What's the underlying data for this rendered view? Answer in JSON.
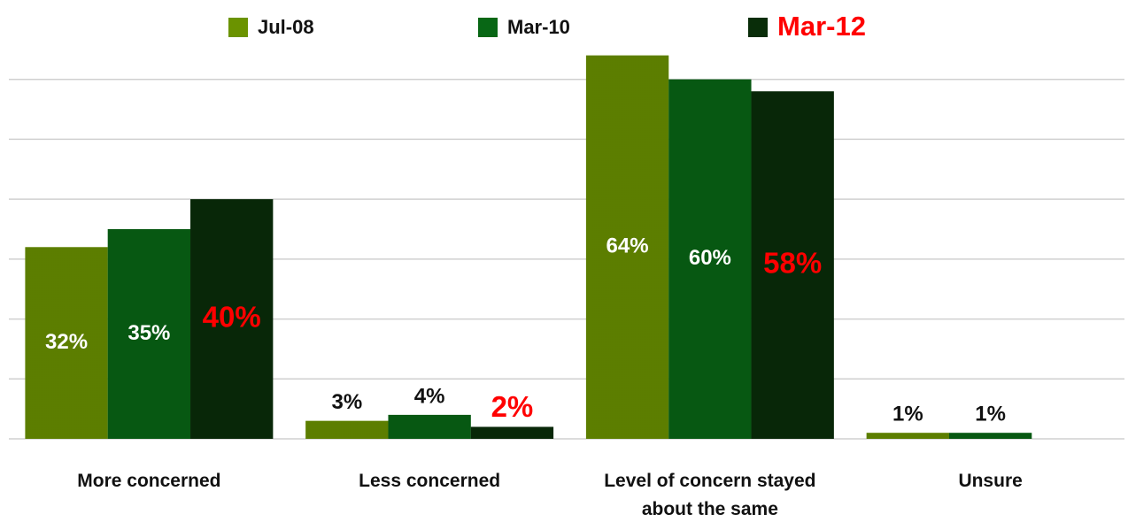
{
  "chart_data": {
    "type": "bar",
    "categories": [
      "More concerned",
      "Less concerned",
      "Level of concern stayed about the same",
      "Unsure"
    ],
    "series": [
      {
        "name": "Jul-08",
        "color": "#8fc400",
        "values": [
          32,
          3,
          64,
          1
        ],
        "value_labels": [
          "32%",
          "3%",
          "64%",
          "1%"
        ]
      },
      {
        "name": "Mar-10",
        "color": "#0b8a1c",
        "values": [
          35,
          4,
          60,
          1
        ],
        "value_labels": [
          "35%",
          "4%",
          "60%",
          "1%"
        ]
      },
      {
        "name": "Mar-12",
        "color": "#0d3d0d",
        "label_color": "#ff0000",
        "values": [
          40,
          2,
          58,
          null
        ],
        "value_labels": [
          "40%",
          "2%",
          "58%",
          null
        ]
      }
    ],
    "ylim": [
      0,
      70
    ],
    "yticks": [
      0,
      10,
      20,
      30,
      40,
      50,
      60
    ],
    "grid": true
  }
}
